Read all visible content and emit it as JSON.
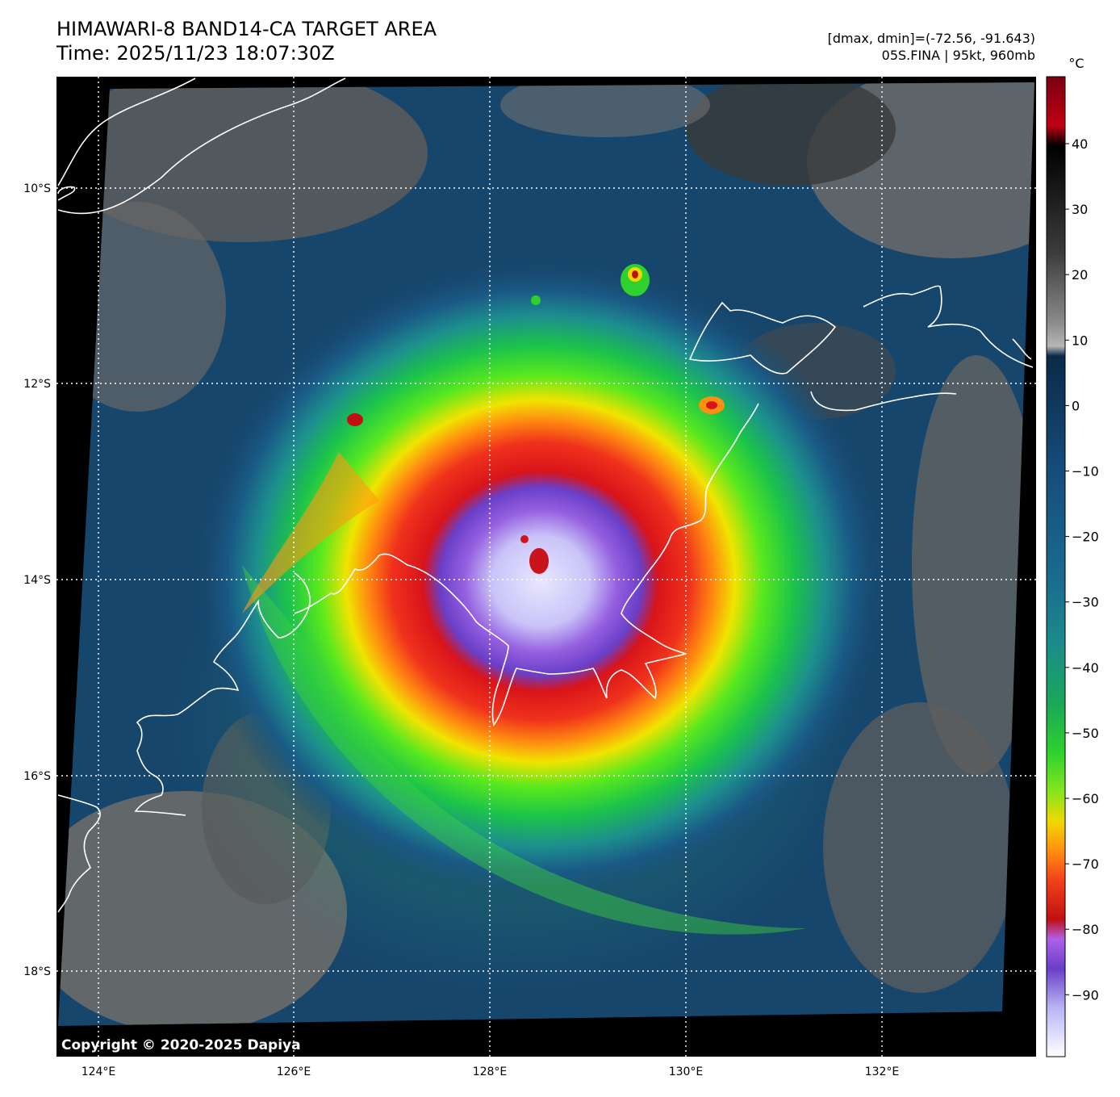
{
  "header": {
    "title_line1": "HIMAWARI-8 BAND14-CA TARGET AREA",
    "title_line2": "Time: 2025/11/23 18:07:30Z",
    "info_line1": "[dmax, dmin]=(-72.56, -91.643)",
    "info_line2": "05S.FINA | 95kt, 960mb"
  },
  "map": {
    "lon_labels": [
      "124°E",
      "126°E",
      "128°E",
      "130°E",
      "132°E"
    ],
    "lat_labels": [
      "10°S",
      "12°S",
      "14°S",
      "16°S",
      "18°S"
    ],
    "copyright": "Copyright © 2020-2025 Dapiya"
  },
  "colorbar": {
    "unit": "°C",
    "ticks": [
      "40",
      "30",
      "20",
      "10",
      "0",
      "−10",
      "−20",
      "−30",
      "−40",
      "−50",
      "−60",
      "−70",
      "−80",
      "−90"
    ]
  }
}
